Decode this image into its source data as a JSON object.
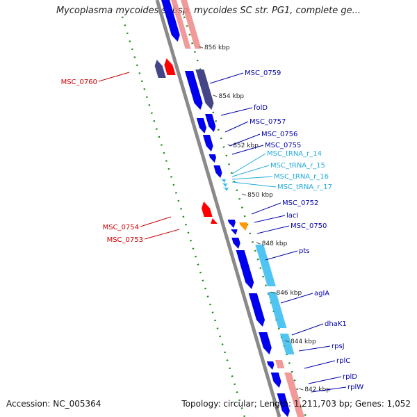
{
  "title": "Mycoplasma mycoides subsp. mycoides SC str. PG1, complete ge...",
  "footer": {
    "accession": "Accession: NC_005364",
    "summary": "Topology: circular; Length: 1,211,703 bp; Genes: 1,052"
  },
  "colors": {
    "backbone": "#888888",
    "forward_cds": "#0000ee",
    "reverse_cds": "#ff0000",
    "gene_forward": "#444488",
    "gene_reverse": "#444488",
    "rrna": "#ee8888",
    "trna": "#33bbee",
    "other": "#ff9900",
    "gc_skew": "#228822",
    "label_forward": "#0000aa",
    "label_reverse": "#cc0000",
    "label_trna": "#22aadd"
  },
  "ticks": [
    "856 kbp",
    "854 kbp",
    "852 kbp",
    "850 kbp",
    "848 kbp",
    "846 kbp",
    "844 kbp",
    "842 kbp"
  ],
  "labels": {
    "forward": [
      "MSC_0759",
      "folD",
      "MSC_0757",
      "MSC_0756",
      "MSC_0755",
      "MSC_0752",
      "lacI",
      "MSC_0750",
      "pts",
      "aglA",
      "dhaK1",
      "rpsJ",
      "rplC",
      "rplD",
      "rplW"
    ],
    "trna": [
      "MSC_tRNA_r_14",
      "MSC_tRNA_r_15",
      "MSC_tRNA_r_16",
      "MSC_tRNA_r_17"
    ],
    "reverse": [
      "MSC_0760",
      "MSC_0754",
      "MSC_0753"
    ]
  }
}
